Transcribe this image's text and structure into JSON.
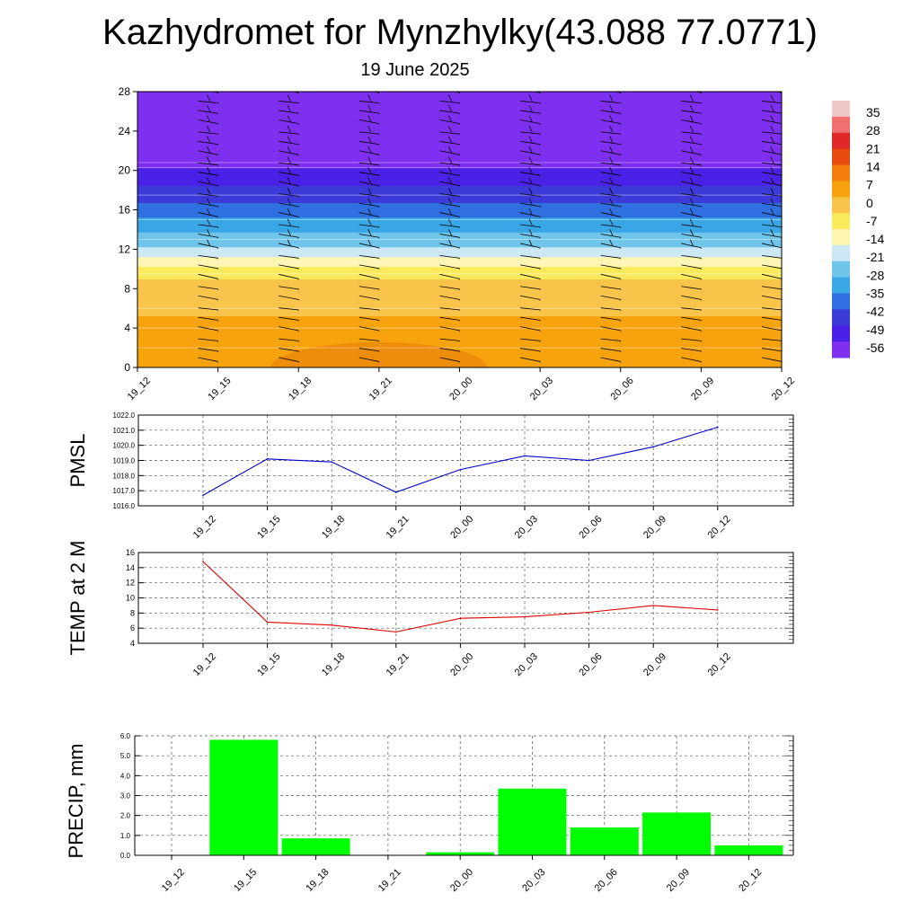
{
  "title": "Kazhydromet for Mynzhylky(43.088 77.0771)",
  "date": "19 June 2025",
  "chart_data": [
    {
      "type": "heatmap",
      "description_of_axes": "time vs height, colour = temperature, wind barbs overlaid",
      "x_ticks": [
        "19_12",
        "19_15",
        "19_18",
        "19_21",
        "20_00",
        "20_03",
        "20_06",
        "20_09",
        "20_12"
      ],
      "y_ticks": [
        0,
        4,
        8,
        12,
        16,
        20,
        24,
        28
      ],
      "ylim": [
        0,
        28
      ],
      "colorbar": {
        "labels": [
          "35",
          "28",
          "21",
          "14",
          "7",
          "0",
          "-7",
          "-14",
          "-21",
          "-28",
          "-35",
          "-42",
          "-49",
          "-56"
        ],
        "colors": [
          "#f0c8c8",
          "#f07070",
          "#e02828",
          "#e84a10",
          "#f37f0f",
          "#f7a30d",
          "#f8c44a",
          "#fbea5c",
          "#fdf6b0",
          "#cde8f5",
          "#6fc5ea",
          "#39a6e6",
          "#2f6fe0",
          "#3c3ad8",
          "#4a21e6",
          "#7e2ff0"
        ]
      },
      "temperature_profile": [
        {
          "h": 0,
          "t": 8
        },
        {
          "h": 2,
          "t": 6
        },
        {
          "h": 5,
          "t": 3
        },
        {
          "h": 8,
          "t": 0
        },
        {
          "h": 10,
          "t": -8
        },
        {
          "h": 10.8,
          "t": -14
        },
        {
          "h": 12,
          "t": -22
        },
        {
          "h": 14,
          "t": -32
        },
        {
          "h": 16,
          "t": -40
        },
        {
          "h": 18,
          "t": -48
        },
        {
          "h": 19.5,
          "t": -55
        },
        {
          "h": 21,
          "t": -58
        },
        {
          "h": 28,
          "t": -60
        }
      ],
      "grid": false
    },
    {
      "type": "line",
      "ylabel": "PMSL",
      "categories": [
        "19_12",
        "19_15",
        "19_18",
        "19_21",
        "20_00",
        "20_03",
        "20_06",
        "20_09",
        "20_12"
      ],
      "series": [
        {
          "values": [
            1016.7,
            1019.1,
            1018.9,
            1016.9,
            1018.4,
            1019.3,
            1019.0,
            1019.9,
            1021.2
          ]
        }
      ],
      "color": "#0000cc",
      "ylim": [
        1016.0,
        1022.0
      ],
      "y_ticks": [
        "1016.0",
        "1017.0",
        "1018.0",
        "1019.0",
        "1020.0",
        "1021.0",
        "1022.0"
      ],
      "grid": true
    },
    {
      "type": "line",
      "ylabel": "TEMP at 2 M",
      "categories": [
        "19_12",
        "19_15",
        "19_18",
        "19_21",
        "20_00",
        "20_03",
        "20_06",
        "20_09",
        "20_12"
      ],
      "series": [
        {
          "values": [
            14.8,
            6.8,
            6.4,
            5.5,
            7.3,
            7.5,
            8.1,
            9.0,
            8.4
          ]
        }
      ],
      "color": "#e00000",
      "ylim": [
        4,
        16
      ],
      "y_ticks": [
        "4",
        "6",
        "8",
        "10",
        "12",
        "14",
        "16"
      ],
      "grid": true
    },
    {
      "type": "bar",
      "ylabel": "PRECIP, mm",
      "categories": [
        "19_12",
        "19_15",
        "19_18",
        "19_21",
        "20_00",
        "20_03",
        "20_06",
        "20_09",
        "20_12"
      ],
      "values": [
        0.0,
        5.8,
        0.85,
        0.0,
        0.15,
        3.35,
        1.4,
        2.15,
        0.5
      ],
      "color": "#00ff00",
      "ylim": [
        0,
        6.0
      ],
      "y_ticks": [
        "0.0",
        "1.0",
        "2.0",
        "3.0",
        "4.0",
        "5.0",
        "6.0"
      ],
      "grid": true
    }
  ]
}
